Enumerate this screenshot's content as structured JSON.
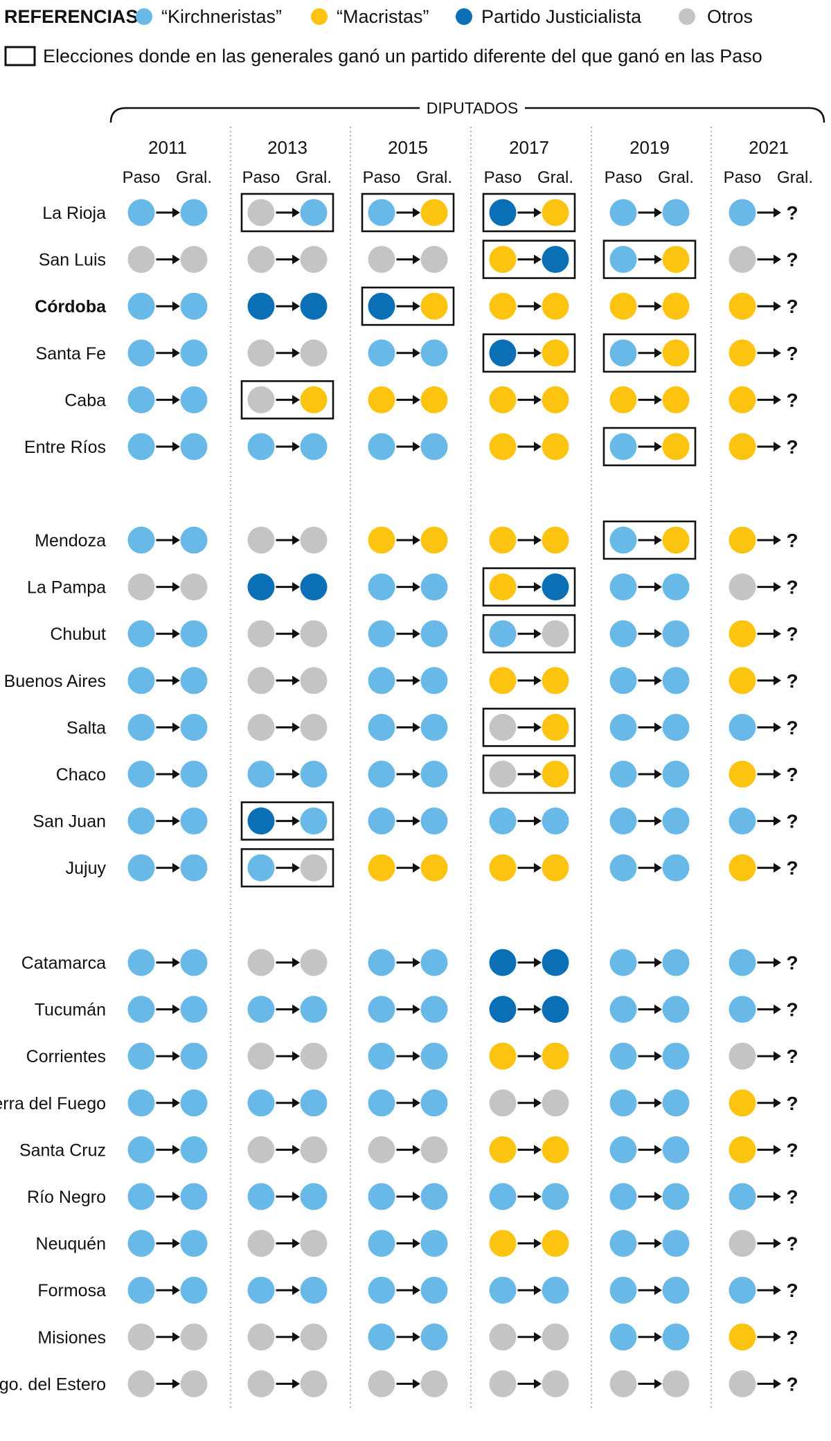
{
  "legend": {
    "title": "REFERENCIAS:",
    "items": [
      {
        "key": "K",
        "label": "“Kirchneristas”",
        "color": "#68b8e8"
      },
      {
        "key": "M",
        "label": "“Macristas”",
        "color": "#fcc310"
      },
      {
        "key": "P",
        "label": "Partido Justicialista",
        "color": "#0a6fb5"
      },
      {
        "key": "O",
        "label": "Otros",
        "color": "#c4c4c4"
      }
    ],
    "box_label": "Elecciones donde en las generales ganó un partido diferente del que ganó en las Paso"
  },
  "chart_data": {
    "type": "table",
    "header": "DIPUTADOS",
    "years": [
      "2011",
      "2013",
      "2015",
      "2017",
      "2019",
      "2021"
    ],
    "sub_labels": [
      "Paso",
      "Gral."
    ],
    "unknown_symbol": "?",
    "provinces": [
      {
        "name": "La Rioja",
        "bold": false,
        "results": [
          [
            "K",
            "K"
          ],
          [
            "O",
            "K"
          ],
          [
            "K",
            "M"
          ],
          [
            "P",
            "M"
          ],
          [
            "K",
            "K"
          ],
          [
            "K",
            "?"
          ]
        ],
        "boxed": [
          1,
          2,
          3
        ]
      },
      {
        "name": "San Luis",
        "bold": false,
        "results": [
          [
            "O",
            "O"
          ],
          [
            "O",
            "O"
          ],
          [
            "O",
            "O"
          ],
          [
            "M",
            "P"
          ],
          [
            "K",
            "M"
          ],
          [
            "O",
            "?"
          ]
        ],
        "boxed": [
          3,
          4
        ]
      },
      {
        "name": "Córdoba",
        "bold": true,
        "results": [
          [
            "K",
            "K"
          ],
          [
            "P",
            "P"
          ],
          [
            "P",
            "M"
          ],
          [
            "M",
            "M"
          ],
          [
            "M",
            "M"
          ],
          [
            "M",
            "?"
          ]
        ],
        "boxed": [
          2
        ]
      },
      {
        "name": "Santa Fe",
        "bold": false,
        "results": [
          [
            "K",
            "K"
          ],
          [
            "O",
            "O"
          ],
          [
            "K",
            "K"
          ],
          [
            "P",
            "M"
          ],
          [
            "K",
            "M"
          ],
          [
            "M",
            "?"
          ]
        ],
        "boxed": [
          3,
          4
        ]
      },
      {
        "name": "Caba",
        "bold": false,
        "results": [
          [
            "K",
            "K"
          ],
          [
            "O",
            "M"
          ],
          [
            "M",
            "M"
          ],
          [
            "M",
            "M"
          ],
          [
            "M",
            "M"
          ],
          [
            "M",
            "?"
          ]
        ],
        "boxed": [
          1
        ]
      },
      {
        "name": "Entre Ríos",
        "bold": false,
        "results": [
          [
            "K",
            "K"
          ],
          [
            "K",
            "K"
          ],
          [
            "K",
            "K"
          ],
          [
            "M",
            "M"
          ],
          [
            "K",
            "M"
          ],
          [
            "M",
            "?"
          ]
        ],
        "boxed": [
          4
        ]
      },
      {
        "name": "Mendoza",
        "bold": false,
        "results": [
          [
            "K",
            "K"
          ],
          [
            "O",
            "O"
          ],
          [
            "M",
            "M"
          ],
          [
            "M",
            "M"
          ],
          [
            "K",
            "M"
          ],
          [
            "M",
            "?"
          ]
        ],
        "boxed": [
          4
        ]
      },
      {
        "name": "La Pampa",
        "bold": false,
        "results": [
          [
            "O",
            "O"
          ],
          [
            "P",
            "P"
          ],
          [
            "K",
            "K"
          ],
          [
            "M",
            "P"
          ],
          [
            "K",
            "K"
          ],
          [
            "O",
            "?"
          ]
        ],
        "boxed": [
          3
        ]
      },
      {
        "name": "Chubut",
        "bold": false,
        "results": [
          [
            "K",
            "K"
          ],
          [
            "O",
            "O"
          ],
          [
            "K",
            "K"
          ],
          [
            "K",
            "O"
          ],
          [
            "K",
            "K"
          ],
          [
            "M",
            "?"
          ]
        ],
        "boxed": [
          3
        ]
      },
      {
        "name": "Buenos Aires",
        "bold": false,
        "results": [
          [
            "K",
            "K"
          ],
          [
            "O",
            "O"
          ],
          [
            "K",
            "K"
          ],
          [
            "M",
            "M"
          ],
          [
            "K",
            "K"
          ],
          [
            "M",
            "?"
          ]
        ],
        "boxed": []
      },
      {
        "name": "Salta",
        "bold": false,
        "results": [
          [
            "K",
            "K"
          ],
          [
            "O",
            "O"
          ],
          [
            "K",
            "K"
          ],
          [
            "O",
            "M"
          ],
          [
            "K",
            "K"
          ],
          [
            "K",
            "?"
          ]
        ],
        "boxed": [
          3
        ]
      },
      {
        "name": "Chaco",
        "bold": false,
        "results": [
          [
            "K",
            "K"
          ],
          [
            "K",
            "K"
          ],
          [
            "K",
            "K"
          ],
          [
            "O",
            "M"
          ],
          [
            "K",
            "K"
          ],
          [
            "M",
            "?"
          ]
        ],
        "boxed": [
          3
        ]
      },
      {
        "name": "San Juan",
        "bold": false,
        "results": [
          [
            "K",
            "K"
          ],
          [
            "P",
            "K"
          ],
          [
            "K",
            "K"
          ],
          [
            "K",
            "K"
          ],
          [
            "K",
            "K"
          ],
          [
            "K",
            "?"
          ]
        ],
        "boxed": [
          1
        ]
      },
      {
        "name": "Jujuy",
        "bold": false,
        "results": [
          [
            "K",
            "K"
          ],
          [
            "K",
            "O"
          ],
          [
            "M",
            "M"
          ],
          [
            "M",
            "M"
          ],
          [
            "K",
            "K"
          ],
          [
            "M",
            "?"
          ]
        ],
        "boxed": [
          1
        ]
      },
      {
        "name": "Catamarca",
        "bold": false,
        "results": [
          [
            "K",
            "K"
          ],
          [
            "O",
            "O"
          ],
          [
            "K",
            "K"
          ],
          [
            "P",
            "P"
          ],
          [
            "K",
            "K"
          ],
          [
            "K",
            "?"
          ]
        ],
        "boxed": []
      },
      {
        "name": "Tucumán",
        "bold": false,
        "results": [
          [
            "K",
            "K"
          ],
          [
            "K",
            "K"
          ],
          [
            "K",
            "K"
          ],
          [
            "P",
            "P"
          ],
          [
            "K",
            "K"
          ],
          [
            "K",
            "?"
          ]
        ],
        "boxed": []
      },
      {
        "name": "Corrientes",
        "bold": false,
        "results": [
          [
            "K",
            "K"
          ],
          [
            "O",
            "O"
          ],
          [
            "K",
            "K"
          ],
          [
            "M",
            "M"
          ],
          [
            "K",
            "K"
          ],
          [
            "O",
            "?"
          ]
        ],
        "boxed": []
      },
      {
        "name": "Tierra del Fuego",
        "bold": false,
        "results": [
          [
            "K",
            "K"
          ],
          [
            "K",
            "K"
          ],
          [
            "K",
            "K"
          ],
          [
            "O",
            "O"
          ],
          [
            "K",
            "K"
          ],
          [
            "M",
            "?"
          ]
        ],
        "boxed": []
      },
      {
        "name": "Santa Cruz",
        "bold": false,
        "results": [
          [
            "K",
            "K"
          ],
          [
            "O",
            "O"
          ],
          [
            "O",
            "O"
          ],
          [
            "M",
            "M"
          ],
          [
            "K",
            "K"
          ],
          [
            "M",
            "?"
          ]
        ],
        "boxed": []
      },
      {
        "name": "Río Negro",
        "bold": false,
        "results": [
          [
            "K",
            "K"
          ],
          [
            "K",
            "K"
          ],
          [
            "K",
            "K"
          ],
          [
            "K",
            "K"
          ],
          [
            "K",
            "K"
          ],
          [
            "K",
            "?"
          ]
        ],
        "boxed": []
      },
      {
        "name": "Neuquén",
        "bold": false,
        "results": [
          [
            "K",
            "K"
          ],
          [
            "O",
            "O"
          ],
          [
            "K",
            "K"
          ],
          [
            "M",
            "M"
          ],
          [
            "K",
            "K"
          ],
          [
            "O",
            "?"
          ]
        ],
        "boxed": []
      },
      {
        "name": "Formosa",
        "bold": false,
        "results": [
          [
            "K",
            "K"
          ],
          [
            "K",
            "K"
          ],
          [
            "K",
            "K"
          ],
          [
            "K",
            "K"
          ],
          [
            "K",
            "K"
          ],
          [
            "K",
            "?"
          ]
        ],
        "boxed": []
      },
      {
        "name": "Misiones",
        "bold": false,
        "results": [
          [
            "O",
            "O"
          ],
          [
            "O",
            "O"
          ],
          [
            "K",
            "K"
          ],
          [
            "O",
            "O"
          ],
          [
            "K",
            "K"
          ],
          [
            "M",
            "?"
          ]
        ],
        "boxed": []
      },
      {
        "name": "Sgo. del Estero",
        "bold": false,
        "results": [
          [
            "O",
            "O"
          ],
          [
            "O",
            "O"
          ],
          [
            "O",
            "O"
          ],
          [
            "O",
            "O"
          ],
          [
            "O",
            "O"
          ],
          [
            "O",
            "?"
          ]
        ],
        "boxed": []
      }
    ]
  }
}
